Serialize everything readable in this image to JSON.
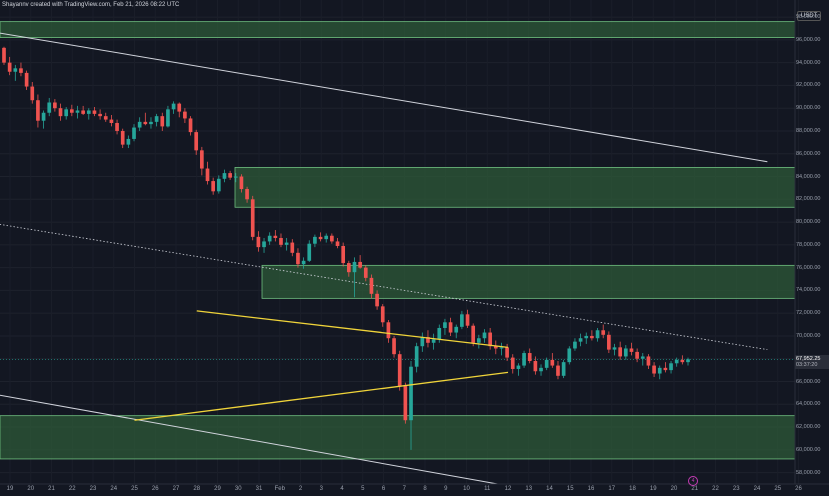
{
  "header": {
    "attribution": "Shayannv created with TradingView.com, Feb 21, 2026 08:22 UTC"
  },
  "currency": "USDT",
  "current_price": {
    "price": "67,952.25",
    "countdown": "03:37:20"
  },
  "colors": {
    "background": "#131722",
    "up": "#26a69a",
    "down": "#ef5350",
    "zone_fill": "#2e5a38",
    "zone_border": "#6fbf7f",
    "triangle": "#f0d43a",
    "channel": "#d1d4dc"
  },
  "chart_data": {
    "type": "candlestick",
    "title": "",
    "ylim": [
      57000,
      99500
    ],
    "y_ticks": [
      "98,000.00",
      "96,000.00",
      "94,000.00",
      "92,000.00",
      "90,000.00",
      "88,000.00",
      "86,000.00",
      "84,000.00",
      "82,000.00",
      "80,000.00",
      "78,000.00",
      "76,000.00",
      "74,000.00",
      "72,000.00",
      "70,000.00",
      "68,000.00",
      "66,000.00",
      "64,000.00",
      "62,000.00",
      "60,000.00",
      "58,000.00"
    ],
    "x_ticks": [
      "19",
      "20",
      "21",
      "22",
      "23",
      "24",
      "25",
      "26",
      "27",
      "28",
      "29",
      "30",
      "31",
      "Feb",
      "2",
      "3",
      "4",
      "5",
      "6",
      "7",
      "8",
      "9",
      "10",
      "11",
      "12",
      "13",
      "14",
      "15",
      "16",
      "17",
      "18",
      "19",
      "20",
      "21",
      "22",
      "23",
      "24",
      "25",
      "26"
    ],
    "support_resistance_zones": [
      {
        "low": 96200,
        "high": 97600
      },
      {
        "low": 81300,
        "high": 84800
      },
      {
        "low": 73300,
        "high": 76200
      },
      {
        "low": 59200,
        "high": 63000
      }
    ],
    "symmetrical_triangle": {
      "upper": [
        [
          9.0,
          72200
        ],
        [
          24.0,
          69000
        ]
      ],
      "lower": [
        [
          6.0,
          62600
        ],
        [
          24.0,
          66800
        ]
      ]
    },
    "channel_lines": [
      {
        "style": "solid",
        "from": [
          -0.5,
          96600
        ],
        "to": [
          36.5,
          85300
        ]
      },
      {
        "style": "dotted",
        "from": [
          -0.5,
          79800
        ],
        "to": [
          36.5,
          68800
        ]
      },
      {
        "style": "solid",
        "from": [
          -0.5,
          64800
        ],
        "to": [
          23.5,
          57000
        ]
      }
    ],
    "ohlc_4h": [
      [
        95300,
        95400,
        93800,
        94000
      ],
      [
        94000,
        94500,
        92900,
        93200
      ],
      [
        93200,
        93800,
        92400,
        93500
      ],
      [
        93500,
        94000,
        92800,
        93100
      ],
      [
        93100,
        93300,
        91600,
        91900
      ],
      [
        91900,
        92300,
        90400,
        90700
      ],
      [
        90700,
        91200,
        88300,
        88900
      ],
      [
        88900,
        89800,
        88200,
        89600
      ],
      [
        89600,
        90900,
        89300,
        90500
      ],
      [
        90500,
        90800,
        89700,
        90000
      ],
      [
        90000,
        90400,
        88900,
        89300
      ],
      [
        89300,
        90100,
        89000,
        89900
      ],
      [
        89900,
        90300,
        89300,
        89600
      ],
      [
        89600,
        90200,
        89100,
        89800
      ],
      [
        89800,
        90200,
        89400,
        89500
      ],
      [
        89500,
        90000,
        89000,
        89800
      ],
      [
        89800,
        90100,
        89300,
        89500
      ],
      [
        89500,
        89900,
        89000,
        89300
      ],
      [
        89300,
        89600,
        88800,
        89000
      ],
      [
        89000,
        89400,
        88400,
        88700
      ],
      [
        88700,
        89000,
        87700,
        88000
      ],
      [
        88000,
        88200,
        86500,
        86800
      ],
      [
        86800,
        87600,
        86500,
        87300
      ],
      [
        87300,
        88600,
        87100,
        88300
      ],
      [
        88300,
        89200,
        88000,
        88800
      ],
      [
        88800,
        89600,
        88500,
        88600
      ],
      [
        88600,
        89200,
        88200,
        88800
      ],
      [
        88800,
        89500,
        88400,
        89300
      ],
      [
        89300,
        89600,
        88000,
        88400
      ],
      [
        88400,
        90200,
        88300,
        89900
      ],
      [
        89900,
        90600,
        89500,
        90400
      ],
      [
        90400,
        90500,
        89200,
        89700
      ],
      [
        89700,
        90000,
        88700,
        89100
      ],
      [
        89100,
        89300,
        87600,
        87900
      ],
      [
        87900,
        88100,
        85900,
        86300
      ],
      [
        86300,
        86600,
        84100,
        84700
      ],
      [
        84700,
        85300,
        83300,
        83600
      ],
      [
        83600,
        83900,
        82400,
        82700
      ],
      [
        82700,
        84100,
        82500,
        83800
      ],
      [
        83800,
        84600,
        83500,
        84300
      ],
      [
        84300,
        84500,
        83700,
        83900
      ],
      [
        83900,
        84300,
        83500,
        84000
      ],
      [
        84000,
        84200,
        82600,
        82900
      ],
      [
        82900,
        83100,
        81700,
        82000
      ],
      [
        82000,
        82300,
        78400,
        78700
      ],
      [
        78700,
        79200,
        77400,
        77800
      ],
      [
        77800,
        78600,
        77300,
        78300
      ],
      [
        78300,
        79100,
        78000,
        78800
      ],
      [
        78800,
        79300,
        78300,
        78600
      ],
      [
        78600,
        79000,
        77800,
        78000
      ],
      [
        78000,
        78600,
        77500,
        78200
      ],
      [
        78200,
        78500,
        77000,
        77300
      ],
      [
        77300,
        77700,
        76000,
        76300
      ],
      [
        76300,
        76900,
        75900,
        76600
      ],
      [
        76600,
        78400,
        76500,
        78100
      ],
      [
        78100,
        78900,
        77800,
        78700
      ],
      [
        78700,
        79100,
        78300,
        78500
      ],
      [
        78500,
        79000,
        78200,
        78800
      ],
      [
        78800,
        79000,
        78100,
        78300
      ],
      [
        78300,
        78600,
        77700,
        77900
      ],
      [
        77900,
        78200,
        76100,
        76400
      ],
      [
        76400,
        76600,
        75200,
        75600
      ],
      [
        75600,
        76900,
        73400,
        76500
      ],
      [
        76500,
        77100,
        75900,
        76000
      ],
      [
        76000,
        76200,
        74800,
        75100
      ],
      [
        75100,
        75400,
        73300,
        73700
      ],
      [
        73700,
        74000,
        72300,
        72600
      ],
      [
        72600,
        72800,
        70800,
        71200
      ],
      [
        71200,
        71400,
        69400,
        69800
      ],
      [
        69800,
        70000,
        68100,
        68400
      ],
      [
        68400,
        68700,
        65200,
        65600
      ],
      [
        65600,
        65900,
        62300,
        62600
      ],
      [
        62600,
        67800,
        60000,
        67300
      ],
      [
        67300,
        69400,
        66800,
        69100
      ],
      [
        69100,
        70300,
        68600,
        69900
      ],
      [
        69900,
        70500,
        69000,
        69400
      ],
      [
        69400,
        70200,
        68800,
        69700
      ],
      [
        69700,
        71000,
        69400,
        70700
      ],
      [
        70700,
        71500,
        70100,
        71200
      ],
      [
        71200,
        71600,
        70000,
        70300
      ],
      [
        70300,
        71000,
        69800,
        70800
      ],
      [
        70800,
        72200,
        70600,
        71900
      ],
      [
        71900,
        72300,
        70700,
        70900
      ],
      [
        70900,
        71100,
        69100,
        69400
      ],
      [
        69400,
        70100,
        68900,
        69800
      ],
      [
        69800,
        70600,
        69400,
        70300
      ],
      [
        70300,
        70700,
        68800,
        69100
      ],
      [
        69100,
        69600,
        68400,
        68900
      ],
      [
        68900,
        69400,
        68300,
        69000
      ],
      [
        69000,
        69300,
        67800,
        68100
      ],
      [
        68100,
        68400,
        66700,
        67100
      ],
      [
        67100,
        67600,
        66500,
        67400
      ],
      [
        67400,
        68700,
        67200,
        68500
      ],
      [
        68500,
        68900,
        67600,
        67800
      ],
      [
        67800,
        68200,
        66600,
        66900
      ],
      [
        66900,
        67500,
        66500,
        67200
      ],
      [
        67200,
        68100,
        67000,
        67900
      ],
      [
        67900,
        68500,
        67200,
        67400
      ],
      [
        67400,
        67800,
        66200,
        66500
      ],
      [
        66500,
        67900,
        66300,
        67700
      ],
      [
        67700,
        69100,
        67500,
        68900
      ],
      [
        68900,
        69800,
        68700,
        69500
      ],
      [
        69500,
        70200,
        69100,
        69800
      ],
      [
        69800,
        70300,
        69300,
        70000
      ],
      [
        70000,
        70500,
        69600,
        69800
      ],
      [
        69800,
        70700,
        69500,
        70500
      ],
      [
        70500,
        71000,
        69800,
        70100
      ],
      [
        70100,
        70400,
        68500,
        68800
      ],
      [
        68800,
        69300,
        68300,
        69000
      ],
      [
        69000,
        69500,
        67900,
        68200
      ],
      [
        68200,
        69200,
        67900,
        68900
      ],
      [
        68900,
        69400,
        68300,
        68600
      ],
      [
        68600,
        68900,
        67700,
        68000
      ],
      [
        68000,
        68500,
        67400,
        68200
      ],
      [
        68200,
        68400,
        67100,
        67400
      ],
      [
        67400,
        67700,
        66400,
        66700
      ],
      [
        66700,
        67400,
        66200,
        67200
      ],
      [
        67200,
        67700,
        66800,
        67000
      ],
      [
        67000,
        67800,
        66700,
        67600
      ],
      [
        67600,
        68100,
        67300,
        67900
      ],
      [
        67900,
        68300,
        67500,
        67700
      ],
      [
        67700,
        68100,
        67400,
        67952
      ]
    ]
  }
}
